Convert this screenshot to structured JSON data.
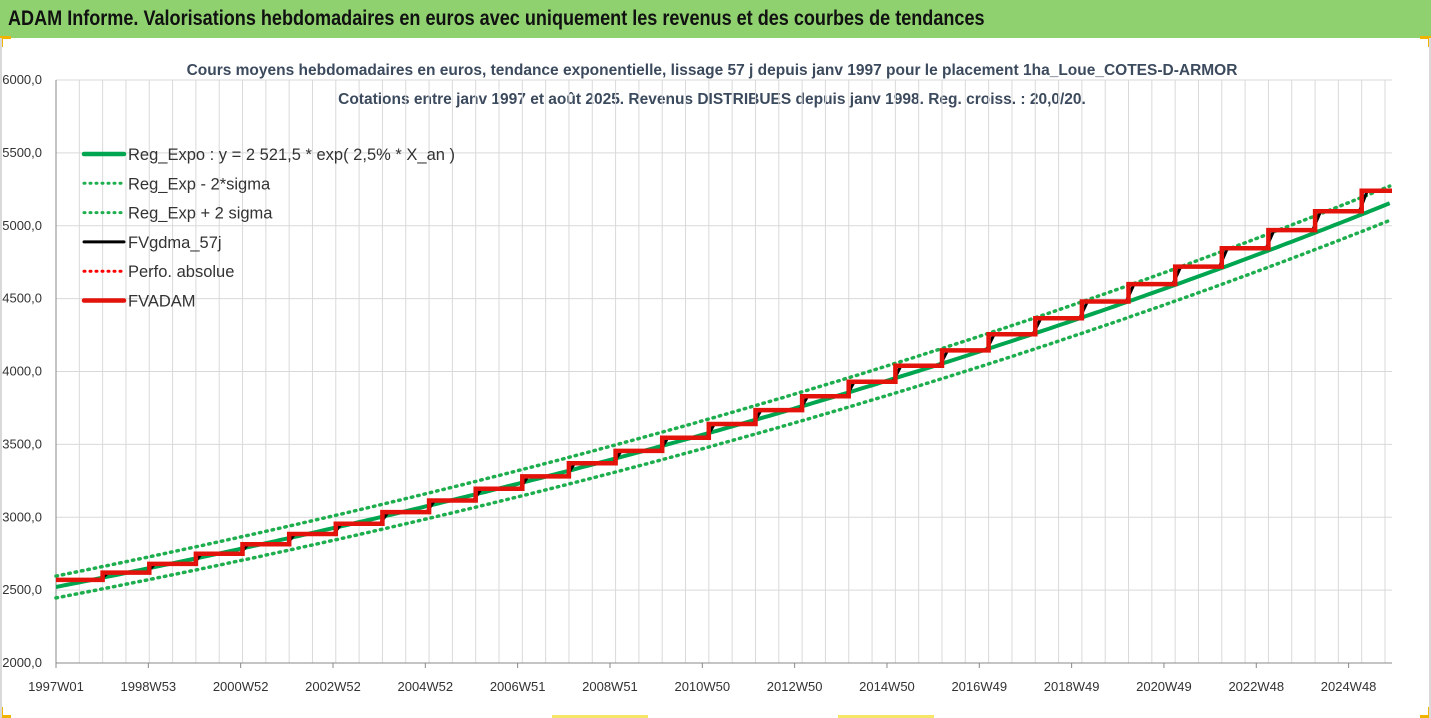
{
  "page": {
    "header_title": "ADAM Informe. Valorisations hebdomadaires en euros avec uniquement les revenus et des courbes de tendances"
  },
  "colors": {
    "header_bg": "#8fd16f",
    "reg_expo": "#00a550",
    "reg_band": "#1fae4e",
    "fvgdma": "#000000",
    "perfo": "#ff0000",
    "fvadam": "#e3120b",
    "grid": "#d9d9d9"
  },
  "chart_data": {
    "type": "line",
    "title": "Cours moyens hebdomadaires en euros, tendance exponentielle, lissage 57 j depuis janv 1997 pour le placement 1ha_Loue_COTES-D-ARMOR",
    "subtitle": "Cotations entre janv 1997 et août 2025. Revenus DISTRIBUES depuis janv 1998. Reg. croiss. : 20,0/20.",
    "xlabel": "",
    "ylabel": "",
    "ylim": [
      2000,
      6000
    ],
    "xlim": [
      1997.0,
      2025.65
    ],
    "y_ticks": [
      "2000,0",
      "2500,0",
      "3000,0",
      "3500,0",
      "4000,0",
      "4500,0",
      "5000,0",
      "5500,0",
      "6000,0"
    ],
    "y_tick_values": [
      2000,
      2500,
      3000,
      3500,
      4000,
      4500,
      5000,
      5500,
      6000
    ],
    "x_ticks": [
      "1997W01",
      "1998W53",
      "2000W52",
      "2002W52",
      "2004W52",
      "2006W51",
      "2008W51",
      "2010W50",
      "2012W50",
      "2014W50",
      "2016W49",
      "2018W49",
      "2020W49",
      "2022W48",
      "2024W48"
    ],
    "grid": true,
    "legend_position": "top-left",
    "legend": [
      {
        "label": "Reg_Expo : y = 2 521,5 * exp( 2,5% *  X_an )",
        "style": "solid",
        "color": "#00a550"
      },
      {
        "label": "Reg_Exp - 2*sigma",
        "style": "dotted",
        "color": "#1fae4e"
      },
      {
        "label": "Reg_Exp + 2 sigma",
        "style": "dotted",
        "color": "#1fae4e"
      },
      {
        "label": "FVgdma_57j",
        "style": "solid",
        "color": "#000000"
      },
      {
        "label": "Perfo. absolue",
        "style": "dotted",
        "color": "#ff0000"
      },
      {
        "label": "FVADAM",
        "style": "solid",
        "color": "#e3120b"
      }
    ],
    "regression": {
      "a": 2521.5,
      "rate": 0.025,
      "start_year": 1997.0,
      "sigma_band": 75
    },
    "series": [
      {
        "name": "FVADAM",
        "step_years": [
          1997.0,
          1998.0,
          1999.0,
          2000.0,
          2001.0,
          2002.0,
          2003.0,
          2004.0,
          2005.0,
          2006.0,
          2007.0,
          2008.0,
          2009.0,
          2010.0,
          2011.0,
          2012.0,
          2013.0,
          2014.0,
          2015.0,
          2016.0,
          2017.0,
          2018.0,
          2019.0,
          2020.0,
          2021.0,
          2022.0,
          2023.0,
          2024.0,
          2025.0
        ],
        "values": [
          2570,
          2620,
          2680,
          2750,
          2815,
          2885,
          2955,
          3035,
          3115,
          3195,
          3280,
          3370,
          3455,
          3545,
          3640,
          3735,
          3830,
          3930,
          4040,
          4145,
          4255,
          4365,
          4480,
          4600,
          4720,
          4845,
          4970,
          5100,
          5240
        ]
      }
    ]
  }
}
